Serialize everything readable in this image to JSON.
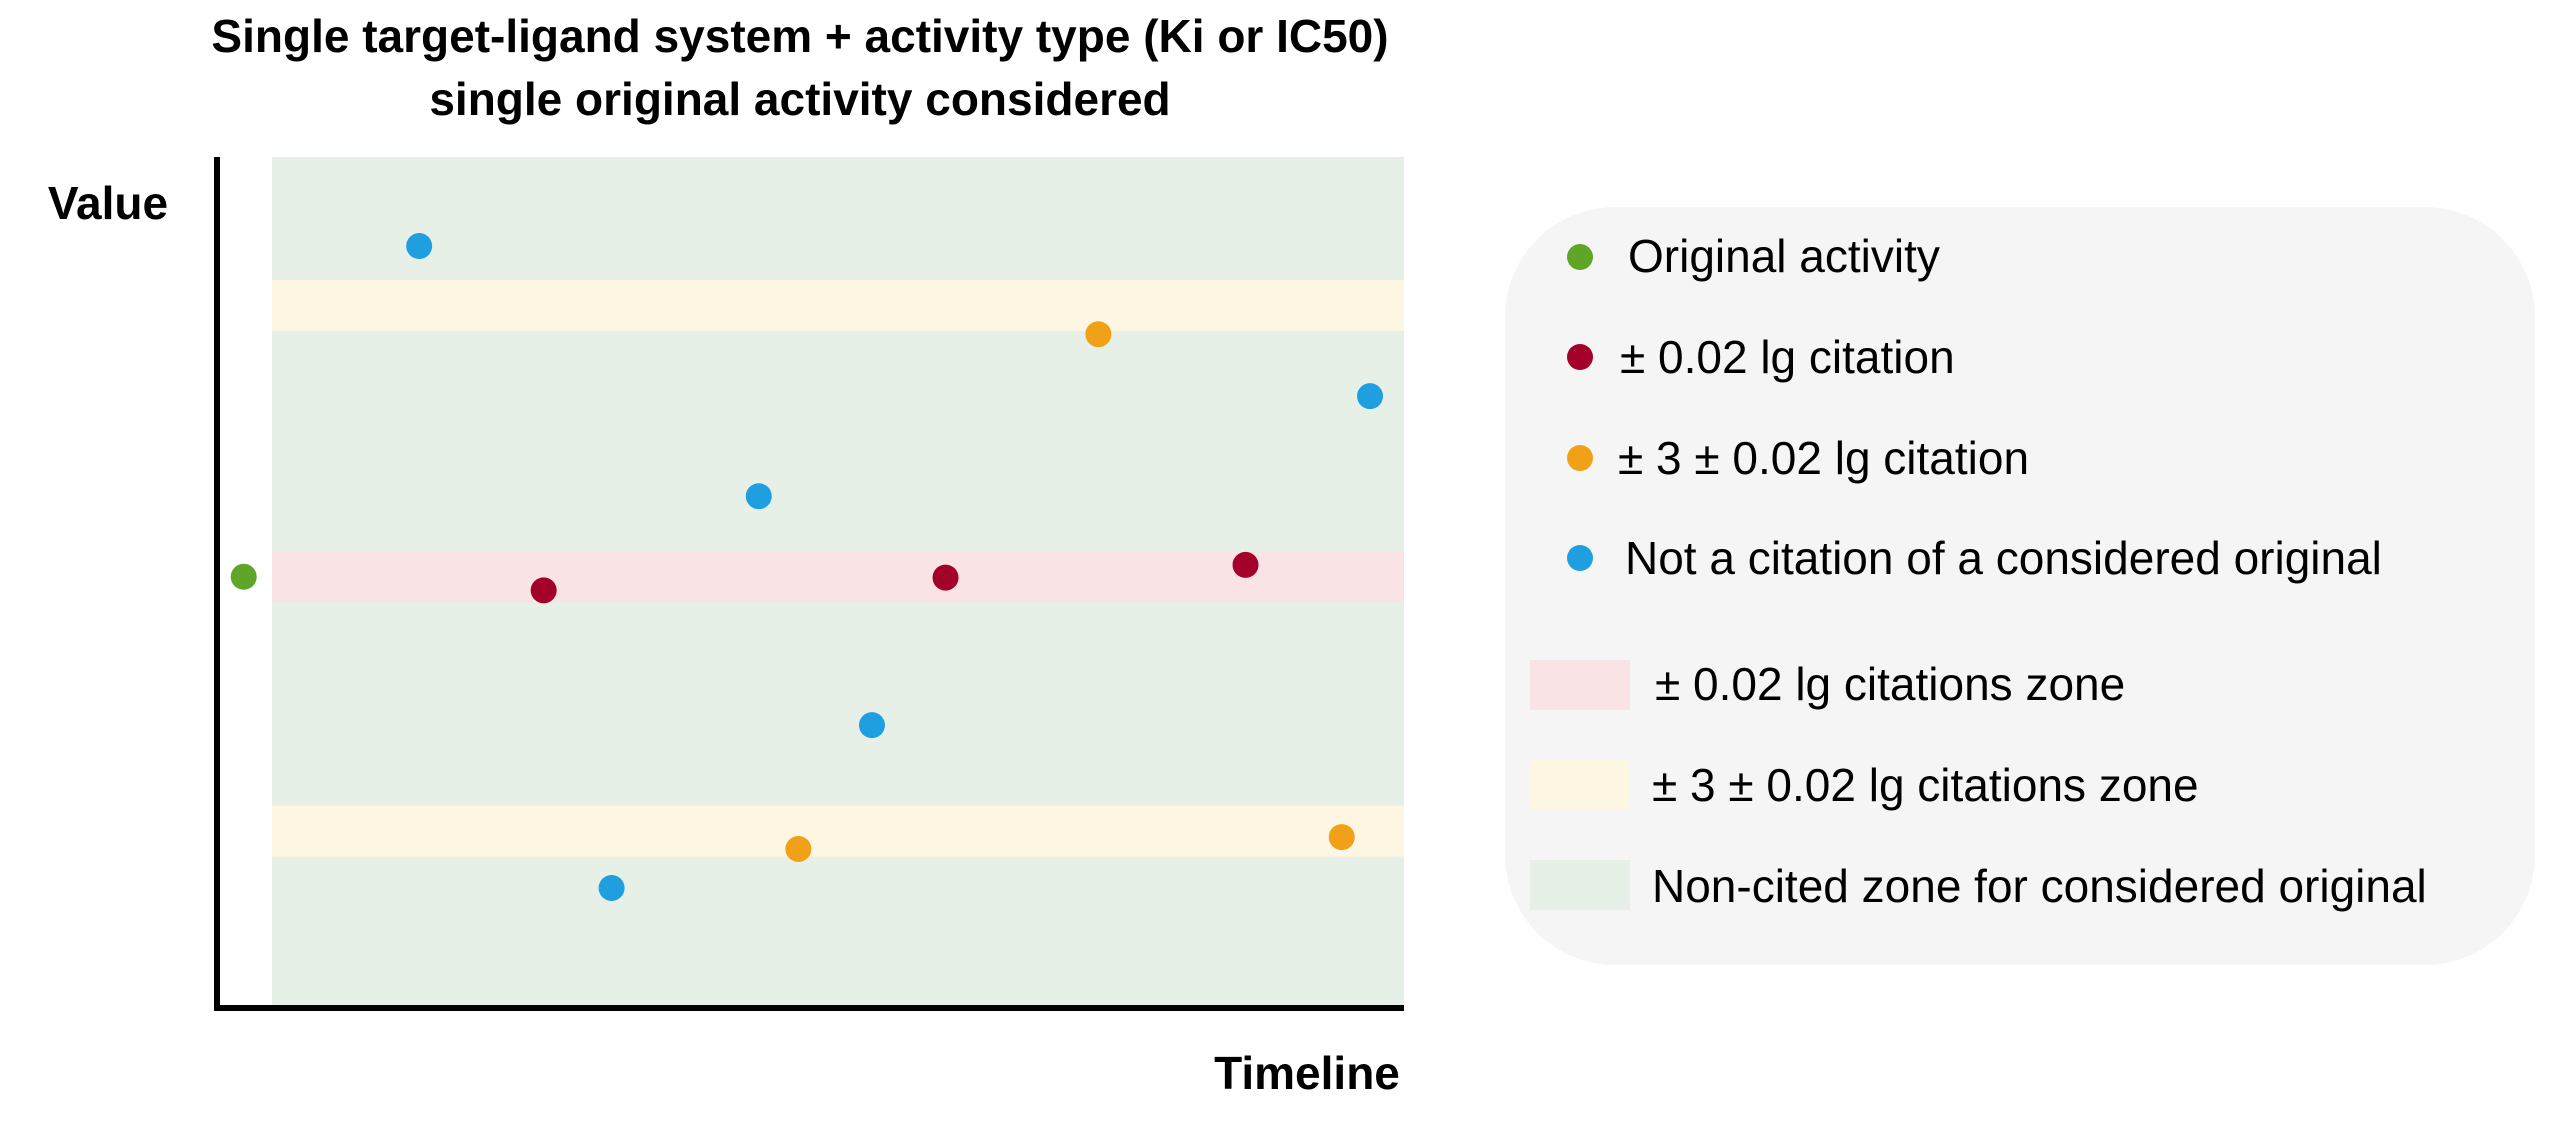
{
  "title": {
    "line1": "Single target-ligand system + activity type (Ki or IC50)",
    "line2": "single original activity considered"
  },
  "axes": {
    "ylabel": "Value",
    "xlabel": "Timeline"
  },
  "colors": {
    "original": "#5fa628",
    "citation": "#a3002a",
    "shifted_citation": "#f0a118",
    "not_citation": "#1f9fe0",
    "zone_citation": "#fae3e4",
    "zone_shifted": "#fdf6e2",
    "zone_noncited": "#e6f0e6",
    "legend_bg": "#f5f5f5",
    "axis": "#000000"
  },
  "legend": {
    "markers": [
      {
        "key": "original",
        "label": "Original activity"
      },
      {
        "key": "citation",
        "label": "± 0.02 lg citation"
      },
      {
        "key": "shifted_citation",
        "label": "± 3 ± 0.02 lg citation"
      },
      {
        "key": "not_citation",
        "label": "Not a citation of a considered original"
      }
    ],
    "zones": [
      {
        "key": "zone_citation",
        "label": "± 0.02 lg citations zone"
      },
      {
        "key": "zone_shifted",
        "label": "± 3 ± 0.02 lg citations zone"
      },
      {
        "key": "zone_noncited",
        "label": "Non-cited zone for considered original"
      }
    ]
  },
  "chart_data": {
    "type": "scatter",
    "title": "Single target-ligand system + activity type (Ki or IC50) single original activity considered",
    "xlabel": "Timeline",
    "ylabel": "Value",
    "xlim": [
      0,
      100
    ],
    "ylim": [
      0,
      100
    ],
    "grid": false,
    "zones": [
      {
        "key": "zone_noncited",
        "y0": 0,
        "y1": 100
      },
      {
        "key": "zone_shifted",
        "y0": 79.5,
        "y1": 85.5
      },
      {
        "key": "zone_citation",
        "y0": 47.5,
        "y1": 53.5
      },
      {
        "key": "zone_shifted",
        "y0": 17.5,
        "y1": 23.5
      }
    ],
    "points": [
      {
        "key": "original",
        "x": -2.5,
        "y": 50.5
      },
      {
        "key": "not_citation",
        "x": 13,
        "y": 89.5
      },
      {
        "key": "citation",
        "x": 24,
        "y": 48.9
      },
      {
        "key": "not_citation",
        "x": 30,
        "y": 13.8
      },
      {
        "key": "not_citation",
        "x": 43,
        "y": 60
      },
      {
        "key": "shifted_citation",
        "x": 46.5,
        "y": 18.4
      },
      {
        "key": "not_citation",
        "x": 53,
        "y": 33
      },
      {
        "key": "citation",
        "x": 59.5,
        "y": 50.4
      },
      {
        "key": "shifted_citation",
        "x": 73,
        "y": 79.1
      },
      {
        "key": "citation",
        "x": 86,
        "y": 51.9
      },
      {
        "key": "shifted_citation",
        "x": 94.5,
        "y": 19.8
      },
      {
        "key": "not_citation",
        "x": 97,
        "y": 71.8
      }
    ]
  }
}
